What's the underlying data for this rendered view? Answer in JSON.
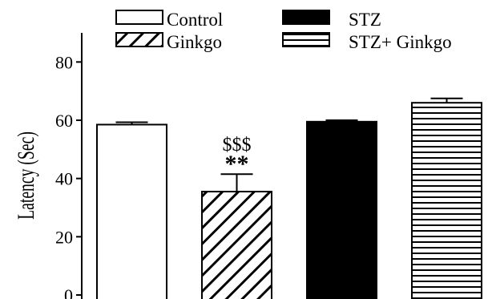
{
  "chart_data": {
    "type": "bar",
    "categories": [
      "Control",
      "Ginkgo",
      "STZ",
      "STZ+ Ginkgo"
    ],
    "values": [
      58.5,
      35.5,
      59.5,
      66.0
    ],
    "errors": [
      0.8,
      6.0,
      0.5,
      1.5
    ],
    "ylabel": "Latency (Sec)",
    "xlabel": "",
    "ylim": [
      0,
      90
    ],
    "yticks": [
      0,
      20,
      40,
      60,
      80
    ],
    "ytick_labels": [
      "0",
      "20",
      "40",
      "60",
      "80"
    ],
    "legend": {
      "placement": "top",
      "entries": [
        {
          "label": "Control",
          "pattern": "empty"
        },
        {
          "label": "STZ",
          "pattern": "solid"
        },
        {
          "label": "Ginkgo",
          "pattern": "diagonal"
        },
        {
          "label": "STZ+ Ginkgo",
          "pattern": "horizontal"
        }
      ]
    },
    "annotations": [
      {
        "category": "Ginkgo",
        "lines": [
          "$$$",
          "**"
        ]
      }
    ],
    "grid": false,
    "colors": {
      "bar_stroke": "#000000",
      "fill_solid": "#000000",
      "background": "#ffffff"
    }
  }
}
